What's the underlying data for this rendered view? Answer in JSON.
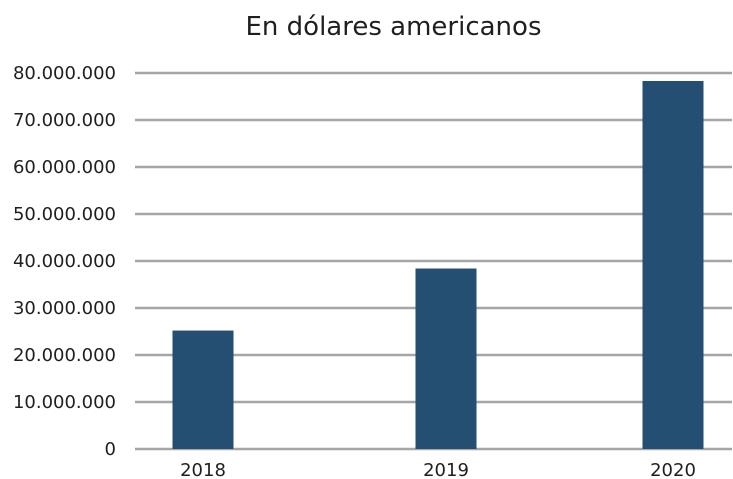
{
  "chart_data": {
    "type": "bar",
    "title": "En dólares americanos",
    "categories": [
      "2018",
      "2019",
      "2020"
    ],
    "values": [
      25200000,
      38400000,
      78300000
    ],
    "xlabel": "",
    "ylabel": "",
    "ylim": [
      0,
      80000000
    ],
    "yticks": [
      "0",
      "10.000.000",
      "20.000.000",
      "30.000.000",
      "40.000.000",
      "50.000.000",
      "60.000.000",
      "70.000.000",
      "80.000.000"
    ],
    "grid": true,
    "legend": "none",
    "bar_color": "#244e72",
    "grid_color": "#a6a6a6"
  }
}
